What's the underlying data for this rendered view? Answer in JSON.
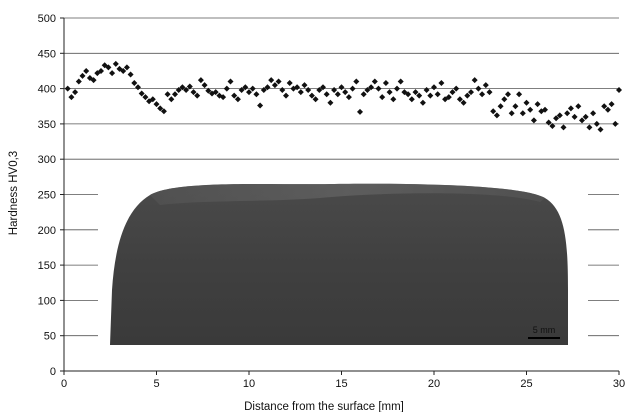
{
  "chart_data": {
    "type": "scatter",
    "title": "",
    "xlabel": "Distance from the surface [mm]",
    "ylabel": "Hardness HV0,3",
    "xlim": [
      0,
      30
    ],
    "ylim": [
      0,
      500
    ],
    "xticks": [
      0,
      5,
      10,
      15,
      20,
      25,
      30
    ],
    "yticks": [
      0,
      50,
      100,
      150,
      200,
      250,
      300,
      350,
      400,
      450,
      500
    ],
    "grid": "horizontal",
    "legend": "none",
    "marker": "diamond",
    "marker_color": "#111111",
    "series": [
      {
        "points": [
          [
            0.2,
            400
          ],
          [
            0.4,
            388
          ],
          [
            0.6,
            395
          ],
          [
            0.8,
            410
          ],
          [
            1.0,
            418
          ],
          [
            1.2,
            425
          ],
          [
            1.4,
            415
          ],
          [
            1.6,
            412
          ],
          [
            1.8,
            422
          ],
          [
            2.0,
            425
          ],
          [
            2.2,
            433
          ],
          [
            2.4,
            430
          ],
          [
            2.6,
            422
          ],
          [
            2.8,
            435
          ],
          [
            3.0,
            428
          ],
          [
            3.2,
            425
          ],
          [
            3.4,
            430
          ],
          [
            3.6,
            420
          ],
          [
            3.8,
            408
          ],
          [
            4.0,
            402
          ],
          [
            4.2,
            393
          ],
          [
            4.4,
            388
          ],
          [
            4.6,
            382
          ],
          [
            4.8,
            385
          ],
          [
            5.0,
            378
          ],
          [
            5.2,
            372
          ],
          [
            5.4,
            368
          ],
          [
            5.6,
            392
          ],
          [
            5.8,
            385
          ],
          [
            6.0,
            392
          ],
          [
            6.2,
            398
          ],
          [
            6.4,
            402
          ],
          [
            6.6,
            398
          ],
          [
            6.8,
            403
          ],
          [
            7.0,
            395
          ],
          [
            7.2,
            390
          ],
          [
            7.4,
            412
          ],
          [
            7.6,
            405
          ],
          [
            7.8,
            397
          ],
          [
            8.0,
            393
          ],
          [
            8.2,
            395
          ],
          [
            8.4,
            390
          ],
          [
            8.6,
            388
          ],
          [
            8.8,
            400
          ],
          [
            9.0,
            410
          ],
          [
            9.2,
            390
          ],
          [
            9.4,
            385
          ],
          [
            9.6,
            398
          ],
          [
            9.8,
            402
          ],
          [
            10.0,
            395
          ],
          [
            10.2,
            400
          ],
          [
            10.4,
            392
          ],
          [
            10.6,
            376
          ],
          [
            10.8,
            398
          ],
          [
            11.0,
            402
          ],
          [
            11.2,
            412
          ],
          [
            11.4,
            405
          ],
          [
            11.6,
            410
          ],
          [
            11.8,
            398
          ],
          [
            12.0,
            390
          ],
          [
            12.2,
            408
          ],
          [
            12.4,
            400
          ],
          [
            12.6,
            402
          ],
          [
            12.8,
            395
          ],
          [
            13.0,
            405
          ],
          [
            13.2,
            398
          ],
          [
            13.4,
            390
          ],
          [
            13.6,
            385
          ],
          [
            13.8,
            398
          ],
          [
            14.0,
            402
          ],
          [
            14.2,
            392
          ],
          [
            14.4,
            380
          ],
          [
            14.6,
            398
          ],
          [
            14.8,
            392
          ],
          [
            15.0,
            402
          ],
          [
            15.2,
            395
          ],
          [
            15.4,
            388
          ],
          [
            15.6,
            400
          ],
          [
            15.8,
            410
          ],
          [
            16.0,
            367
          ],
          [
            16.2,
            392
          ],
          [
            16.4,
            398
          ],
          [
            16.6,
            402
          ],
          [
            16.8,
            410
          ],
          [
            17.0,
            400
          ],
          [
            17.2,
            388
          ],
          [
            17.4,
            408
          ],
          [
            17.6,
            395
          ],
          [
            17.8,
            385
          ],
          [
            18.0,
            400
          ],
          [
            18.2,
            410
          ],
          [
            18.4,
            395
          ],
          [
            18.6,
            392
          ],
          [
            18.8,
            385
          ],
          [
            19.0,
            395
          ],
          [
            19.2,
            390
          ],
          [
            19.4,
            380
          ],
          [
            19.6,
            398
          ],
          [
            19.8,
            390
          ],
          [
            20.0,
            402
          ],
          [
            20.2,
            392
          ],
          [
            20.4,
            408
          ],
          [
            20.6,
            385
          ],
          [
            20.8,
            388
          ],
          [
            21.0,
            395
          ],
          [
            21.2,
            400
          ],
          [
            21.4,
            385
          ],
          [
            21.6,
            380
          ],
          [
            21.8,
            390
          ],
          [
            22.0,
            395
          ],
          [
            22.2,
            412
          ],
          [
            22.4,
            400
          ],
          [
            22.6,
            392
          ],
          [
            22.8,
            405
          ],
          [
            23.0,
            395
          ],
          [
            23.2,
            368
          ],
          [
            23.4,
            362
          ],
          [
            23.6,
            375
          ],
          [
            23.8,
            385
          ],
          [
            24.0,
            392
          ],
          [
            24.2,
            365
          ],
          [
            24.4,
            375
          ],
          [
            24.6,
            392
          ],
          [
            24.8,
            365
          ],
          [
            25.0,
            380
          ],
          [
            25.2,
            370
          ],
          [
            25.4,
            355
          ],
          [
            25.6,
            378
          ],
          [
            25.8,
            368
          ],
          [
            26.0,
            370
          ],
          [
            26.2,
            352
          ],
          [
            26.4,
            347
          ],
          [
            26.6,
            358
          ],
          [
            26.8,
            362
          ],
          [
            27.0,
            345
          ],
          [
            27.2,
            365
          ],
          [
            27.4,
            372
          ],
          [
            27.6,
            360
          ],
          [
            27.8,
            375
          ],
          [
            28.0,
            355
          ],
          [
            28.2,
            360
          ],
          [
            28.4,
            345
          ],
          [
            28.6,
            365
          ],
          [
            28.8,
            350
          ],
          [
            29.0,
            342
          ],
          [
            29.2,
            375
          ],
          [
            29.4,
            370
          ],
          [
            29.6,
            378
          ],
          [
            29.8,
            350
          ],
          [
            30.0,
            398
          ]
        ]
      }
    ]
  },
  "inset_image": {
    "description": "cross-section macrograph of a rail head",
    "scale_label": "5 mm"
  }
}
